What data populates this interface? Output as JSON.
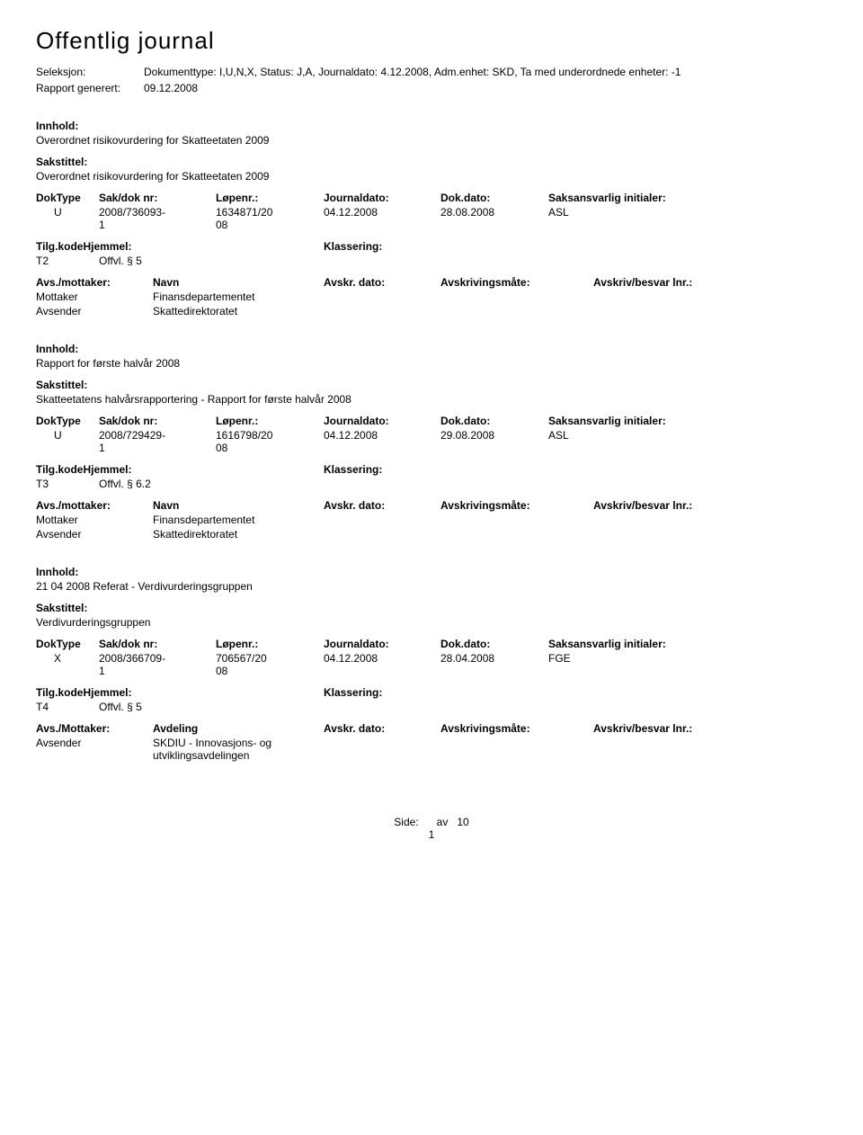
{
  "header": {
    "title": "Offentlig journal",
    "seleksjon_label": "Seleksjon:",
    "seleksjon_value": "Dokumenttype: I,U,N,X, Status: J,A, Journaldato: 4.12.2008, Adm.enhet: SKD, Ta med underordnede enheter: -1",
    "rapport_label": "Rapport generert:",
    "rapport_value": "09.12.2008"
  },
  "labels": {
    "innhold": "Innhold:",
    "sakstittel": "Sakstittel:",
    "doktype": "DokType",
    "sakdoknr": "Sak/dok nr:",
    "lopenr": "Løpenr.:",
    "journaldato": "Journaldato:",
    "dokdato": "Dok.dato:",
    "saksansvarlig": "Saksansvarlig initialer:",
    "tilgkode": "Tilg.kode",
    "hjemmel": "Hjemmel:",
    "tilgkodehjemmel": "Tilg.kodeHjemmel:",
    "klassering": "Klassering:",
    "avsmottaker": "Avs./mottaker:",
    "avsMottaker": "Avs./Mottaker:",
    "navn": "Navn",
    "avdeling": "Avdeling",
    "avskrdato": "Avskr. dato:",
    "avskrivingsmate": "Avskrivingsmåte:",
    "avskrivbesvar": "Avskriv/besvar lnr.:",
    "mottaker": "Mottaker",
    "avsender": "Avsender"
  },
  "entries": [
    {
      "innhold": "Overordnet risikovurdering for Skatteetaten 2009",
      "sakstittel": "Overordnet risikovurdering for Skatteetaten 2009",
      "doktype": "U",
      "sakdoknr": "2008/736093-1",
      "lopenr": "1634871/2008",
      "journaldato": "04.12.2008",
      "dokdato": "28.08.2008",
      "saksansvarlig": "ASL",
      "tilg_code": "T2",
      "tilg_text": "Offvl. § 5",
      "parties_label_mode": "navn",
      "parties": [
        {
          "role": "Mottaker",
          "name": "Finansdepartementet"
        },
        {
          "role": "Avsender",
          "name": "Skattedirektoratet"
        }
      ]
    },
    {
      "innhold": "Rapport for første halvår 2008",
      "sakstittel": "Skatteetatens halvårsrapportering - Rapport for første halvår 2008",
      "doktype": "U",
      "sakdoknr": "2008/729429-1",
      "lopenr": "1616798/2008",
      "journaldato": "04.12.2008",
      "dokdato": "29.08.2008",
      "saksansvarlig": "ASL",
      "tilg_code": "T3",
      "tilg_text": "Offvl. § 6.2",
      "parties_label_mode": "navn",
      "parties": [
        {
          "role": "Mottaker",
          "name": "Finansdepartementet"
        },
        {
          "role": "Avsender",
          "name": "Skattedirektoratet"
        }
      ]
    },
    {
      "innhold": "21 04 2008  Referat -  Verdivurderingsgruppen",
      "sakstittel": "Verdivurderingsgruppen",
      "doktype": "X",
      "sakdoknr": "2008/366709-1",
      "lopenr": "706567/2008",
      "journaldato": "04.12.2008",
      "dokdato": "28.04.2008",
      "saksansvarlig": "FGE",
      "tilg_code": "T4",
      "tilg_text": "Offvl. § 5",
      "parties_label_mode": "avdeling",
      "parties": [
        {
          "role": "Avsender",
          "name": "SKDIU - Innovasjons- og utviklingsavdelingen"
        }
      ]
    }
  ],
  "footer": {
    "side_label": "Side:",
    "av": "av",
    "total": "10",
    "page": "1"
  }
}
